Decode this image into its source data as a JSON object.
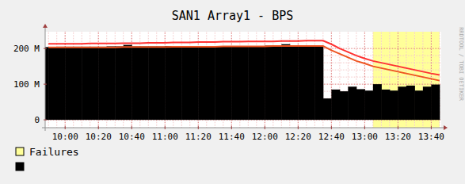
{
  "chart_data": {
    "type": "line",
    "title": "SAN1 Array1 - BPS",
    "watermark": "RRDTOOL / TOBI OETIKER",
    "x": [
      590,
      595,
      600,
      605,
      610,
      615,
      620,
      625,
      630,
      635,
      640,
      645,
      650,
      655,
      660,
      665,
      670,
      675,
      680,
      685,
      690,
      695,
      700,
      705,
      710,
      715,
      720,
      725,
      730,
      735,
      740,
      745,
      750,
      755,
      760,
      765,
      770,
      775,
      780,
      785,
      790,
      795,
      800,
      805,
      810,
      815,
      820,
      825
    ],
    "xlim": [
      588,
      826
    ],
    "xticks": [
      {
        "value": 600,
        "label": "10:00"
      },
      {
        "value": 620,
        "label": "10:20"
      },
      {
        "value": 640,
        "label": "10:40"
      },
      {
        "value": 660,
        "label": "11:00"
      },
      {
        "value": 680,
        "label": "11:20"
      },
      {
        "value": 700,
        "label": "11:40"
      },
      {
        "value": 720,
        "label": "12:00"
      },
      {
        "value": 740,
        "label": "12:20"
      },
      {
        "value": 760,
        "label": "12:40"
      },
      {
        "value": 780,
        "label": "13:00"
      },
      {
        "value": 800,
        "label": "13:20"
      },
      {
        "value": 820,
        "label": "13:40"
      }
    ],
    "ylim": [
      -22,
      247
    ],
    "yticks": [
      0,
      {
        "value": 100,
        "label": "100 M"
      },
      {
        "value": 200,
        "label": "200 M"
      }
    ],
    "grid": true,
    "legend": "bottom-left",
    "series": [
      {
        "name": "Failures",
        "type": "tick",
        "color": "#ffff99",
        "values": [
          null,
          null,
          null,
          null,
          null,
          null,
          null,
          null,
          null,
          null,
          null,
          null,
          null,
          null,
          null,
          null,
          null,
          null,
          null,
          null,
          null,
          null,
          null,
          null,
          null,
          null,
          null,
          null,
          null,
          null,
          null,
          null,
          null,
          null,
          null,
          null,
          null,
          null,
          null,
          null,
          1,
          1,
          1,
          1,
          1,
          1,
          1,
          1
        ]
      },
      {
        "type": "area",
        "color": "#000000",
        "values": [
          204,
          204,
          205,
          205,
          205,
          205,
          205,
          205,
          206,
          206,
          210,
          206,
          206,
          206,
          206,
          207,
          207,
          207,
          207,
          207,
          207,
          206,
          206,
          207,
          207,
          207,
          207,
          208,
          208,
          212,
          208,
          206,
          206,
          206,
          60,
          85,
          80,
          93,
          86,
          82,
          100,
          85,
          82,
          93,
          96,
          82,
          93,
          99
        ]
      },
      {
        "type": "line",
        "color": "#ff3333",
        "values": [
          213,
          213,
          213,
          213,
          213,
          214,
          214,
          214,
          214,
          215,
          215,
          215,
          216,
          216,
          216,
          217,
          217,
          217,
          218,
          218,
          218,
          219,
          219,
          219,
          220,
          220,
          220,
          220,
          221,
          221,
          221,
          222,
          222,
          222,
          212,
          200,
          190,
          180,
          172,
          165,
          160,
          155,
          150,
          145,
          140,
          135,
          130,
          126
        ]
      },
      {
        "type": "line",
        "color": "#ee5522",
        "values": [
          203,
          203,
          203,
          203,
          203,
          203,
          203,
          203,
          203,
          204,
          204,
          204,
          204,
          204,
          204,
          205,
          205,
          205,
          205,
          205,
          205,
          206,
          206,
          206,
          206,
          206,
          206,
          207,
          207,
          207,
          207,
          207,
          207,
          207,
          195,
          185,
          175,
          165,
          158,
          150,
          145,
          140,
          135,
          130,
          125,
          120,
          115,
          110
        ]
      }
    ]
  }
}
